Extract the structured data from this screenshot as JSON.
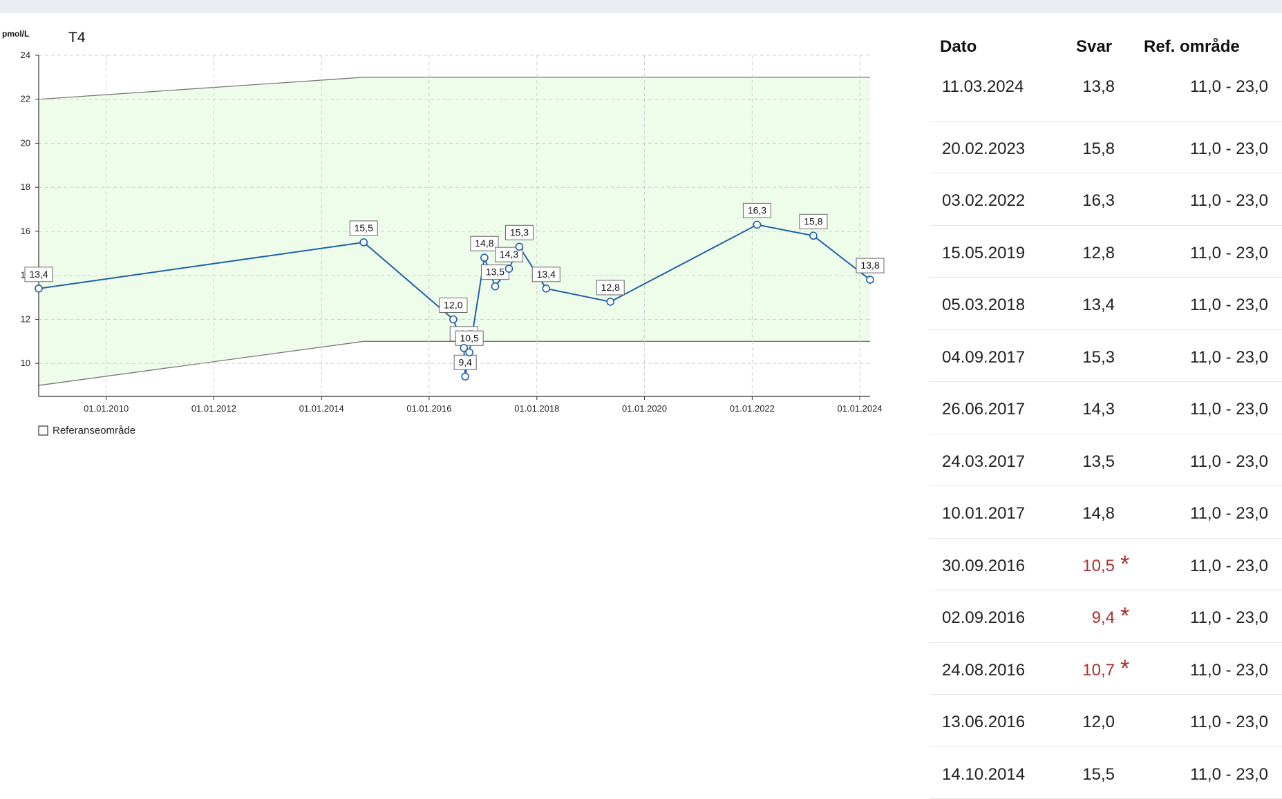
{
  "chart_data": {
    "type": "line",
    "title": "T4",
    "unit": "pmol/L",
    "xlabel": "",
    "ylabel": "pmol/L",
    "ylim": [
      8.5,
      24
    ],
    "xlim": [
      "2008-09-30",
      "2024-03-11"
    ],
    "yticks": [
      10,
      12,
      14,
      16,
      18,
      20,
      22,
      24
    ],
    "ytick_labels": [
      "10",
      "12",
      "14",
      "16",
      "18",
      "20",
      "22",
      "24"
    ],
    "xticks": [
      "2010-01-01",
      "2012-01-01",
      "2014-01-01",
      "2016-01-01",
      "2018-01-01",
      "2020-01-01",
      "2022-01-01",
      "2024-01-01"
    ],
    "xtick_labels": [
      "01.01.2010",
      "01.01.2012",
      "01.01.2014",
      "01.01.2016",
      "01.01.2018",
      "01.01.2020",
      "01.01.2022",
      "01.01.2024"
    ],
    "grid": true,
    "legend": "bottom-left",
    "series": [
      {
        "name": "",
        "color": "#1f5fa8",
        "points": [
          {
            "date": "2008-09-30",
            "value": 13.4,
            "label": "13,4"
          },
          {
            "date": "2014-10-14",
            "value": 15.5,
            "label": "15,5"
          },
          {
            "date": "2016-06-13",
            "value": 12.0,
            "label": "12,0"
          },
          {
            "date": "2016-08-24",
            "value": 10.7,
            "label": "10,7"
          },
          {
            "date": "2016-09-02",
            "value": 9.4,
            "label": "9,4"
          },
          {
            "date": "2016-09-30",
            "value": 10.5,
            "label": "10,5"
          },
          {
            "date": "2017-01-10",
            "value": 14.8,
            "label": "14,8"
          },
          {
            "date": "2017-03-24",
            "value": 13.5,
            "label": "13,5"
          },
          {
            "date": "2017-06-26",
            "value": 14.3,
            "label": "14,3"
          },
          {
            "date": "2017-09-04",
            "value": 15.3,
            "label": "15,3"
          },
          {
            "date": "2018-03-05",
            "value": 13.4,
            "label": "13,4"
          },
          {
            "date": "2019-05-15",
            "value": 12.8,
            "label": "12,8"
          },
          {
            "date": "2022-02-03",
            "value": 16.3,
            "label": "16,3"
          },
          {
            "date": "2023-02-20",
            "value": 15.8,
            "label": "15,8"
          },
          {
            "date": "2024-03-11",
            "value": 13.8,
            "label": "13,8"
          }
        ]
      }
    ],
    "reference_band": {
      "legend_label": "Referanseområde",
      "fill": "#eefdea",
      "lower": [
        {
          "date": "2008-09-30",
          "value": 9.0
        },
        {
          "date": "2014-10-14",
          "value": 11.0
        },
        {
          "date": "2024-03-11",
          "value": 11.0
        }
      ],
      "upper": [
        {
          "date": "2008-09-30",
          "value": 22.0
        },
        {
          "date": "2014-10-14",
          "value": 23.0
        },
        {
          "date": "2024-03-11",
          "value": 23.0
        }
      ]
    }
  },
  "table": {
    "headers": {
      "date": "Dato",
      "value": "Svar",
      "ref": "Ref. område"
    },
    "abnormal_color": "#b03030",
    "rows": [
      {
        "date": "11.03.2024",
        "value": "13,8",
        "ref": "11,0 - 23,0",
        "flag": ""
      },
      {
        "date": "20.02.2023",
        "value": "15,8",
        "ref": "11,0 - 23,0",
        "flag": ""
      },
      {
        "date": "03.02.2022",
        "value": "16,3",
        "ref": "11,0 - 23,0",
        "flag": ""
      },
      {
        "date": "15.05.2019",
        "value": "12,8",
        "ref": "11,0 - 23,0",
        "flag": ""
      },
      {
        "date": "05.03.2018",
        "value": "13,4",
        "ref": "11,0 - 23,0",
        "flag": ""
      },
      {
        "date": "04.09.2017",
        "value": "15,3",
        "ref": "11,0 - 23,0",
        "flag": ""
      },
      {
        "date": "26.06.2017",
        "value": "14,3",
        "ref": "11,0 - 23,0",
        "flag": ""
      },
      {
        "date": "24.03.2017",
        "value": "13,5",
        "ref": "11,0 - 23,0",
        "flag": ""
      },
      {
        "date": "10.01.2017",
        "value": "14,8",
        "ref": "11,0 - 23,0",
        "flag": ""
      },
      {
        "date": "30.09.2016",
        "value": "10,5",
        "ref": "11,0 - 23,0",
        "flag": "*"
      },
      {
        "date": "02.09.2016",
        "value": "9,4",
        "ref": "11,0 - 23,0",
        "flag": "*"
      },
      {
        "date": "24.08.2016",
        "value": "10,7",
        "ref": "11,0 - 23,0",
        "flag": "*"
      },
      {
        "date": "13.06.2016",
        "value": "12,0",
        "ref": "11,0 - 23,0",
        "flag": ""
      },
      {
        "date": "14.10.2014",
        "value": "15,5",
        "ref": "11,0 - 23,0",
        "flag": ""
      }
    ]
  }
}
